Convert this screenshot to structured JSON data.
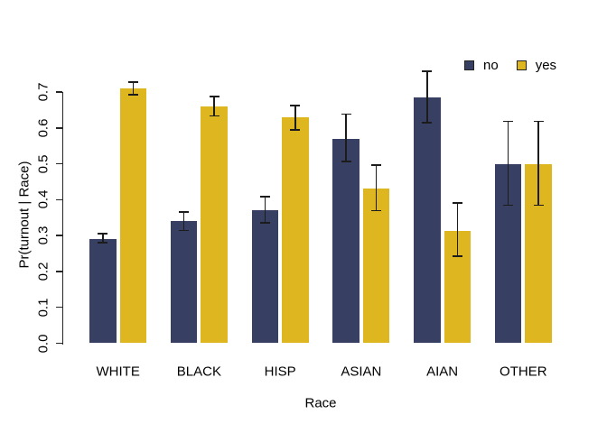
{
  "chart_data": {
    "type": "bar",
    "title": "",
    "xlabel": "Race",
    "ylabel": "Pr(turnout | Race)",
    "categories": [
      "WHITE",
      "BLACK",
      "HISP",
      "ASIAN",
      "AIAN",
      "OTHER"
    ],
    "series": [
      {
        "name": "no",
        "color": "#373f63",
        "values": [
          0.29,
          0.34,
          0.37,
          0.57,
          0.685,
          0.5
        ],
        "error_low": [
          0.28,
          0.314,
          0.336,
          0.507,
          0.615,
          0.384
        ],
        "error_high": [
          0.305,
          0.366,
          0.408,
          0.638,
          0.758,
          0.619
        ]
      },
      {
        "name": "yes",
        "color": "#ddb620",
        "values": [
          0.71,
          0.66,
          0.63,
          0.43,
          0.313,
          0.5
        ],
        "error_low": [
          0.693,
          0.634,
          0.594,
          0.37,
          0.242,
          0.384
        ],
        "error_high": [
          0.728,
          0.687,
          0.663,
          0.496,
          0.391,
          0.619
        ]
      }
    ],
    "ylim": [
      0.0,
      0.7
    ],
    "yticks": [
      0.0,
      0.1,
      0.2,
      0.3,
      0.4,
      0.5,
      0.6,
      0.7
    ],
    "ytick_labels": [
      "0.0",
      "0.1",
      "0.2",
      "0.3",
      "0.4",
      "0.5",
      "0.6",
      "0.7"
    ],
    "grid": false,
    "error_bars": true,
    "legend_position": "top-right"
  },
  "colors": {
    "series_no": "#373f63",
    "series_yes": "#ddb620",
    "axis": "#262626",
    "error_bar": "#1c1c1c",
    "background": "#ffffff"
  }
}
